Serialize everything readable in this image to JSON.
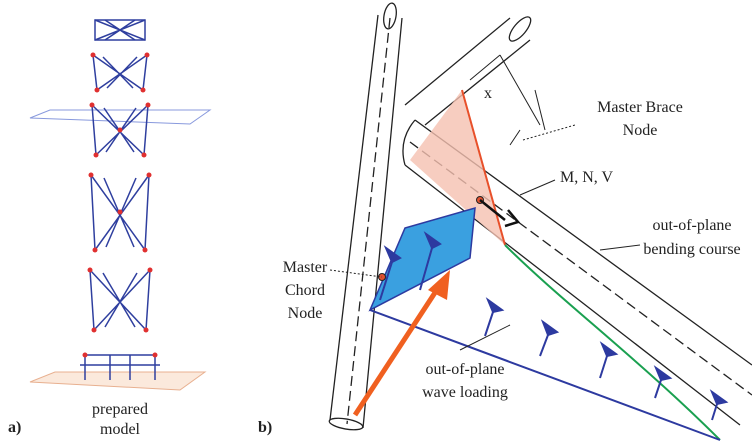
{
  "panel_a": {
    "label": "a)",
    "caption": [
      "prepared",
      "model"
    ]
  },
  "panel_b": {
    "label": "b)",
    "dimension": "x",
    "master_brace_node": [
      "Master Brace",
      "Node"
    ],
    "forces": "M, N, V",
    "bending_course": [
      "out-of-plane",
      "bending course"
    ],
    "master_chord_node": [
      "Master",
      "Chord",
      "Node"
    ],
    "wave_loading": [
      "out-of-plane",
      "wave loading"
    ]
  }
}
